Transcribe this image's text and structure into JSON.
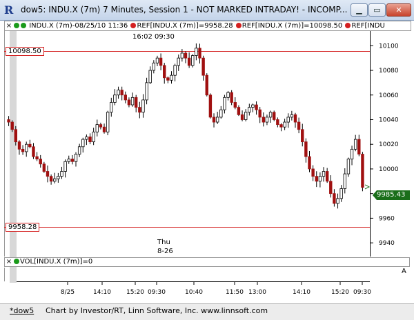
{
  "window": {
    "title": "dow5: INDU.X (7m) 7 Minutes, Session 1 - NOT MARKED INTRADAY! - INCOMP...",
    "app_icon": "R",
    "minimize_label": "▁",
    "maximize_label": "▭",
    "close_label": "✕"
  },
  "legend": {
    "close_label": "×",
    "series_label": "INDU.X (7m)-08/25/10 11:36",
    "ref1_label": "REF[INDU.X (7m)]=9958.28",
    "ref2_label": "REF[INDU.X (7m)]=10098.50",
    "ref3_label": "REF[INDU"
  },
  "chart": {
    "ref_high_label": "10098.50",
    "ref_low_label": "9958.28",
    "last_price": "9985.43",
    "annotation_top": "16:02  09:30",
    "annotation_day": "Thu",
    "annotation_date": "8-26",
    "colors": {
      "up": "#000000",
      "down": "#a01010",
      "ref": "#d42020",
      "last": "#1a6e1a"
    }
  },
  "chart_data": {
    "type": "candlestick",
    "ylim": [
      9930,
      10108
    ],
    "y_ticks": [
      10100,
      10080,
      10060,
      10040,
      10020,
      10000,
      9980,
      9960,
      9940
    ],
    "x_tick_labels": [
      "8/25",
      "14:10",
      "15:20",
      "09:30",
      "10:40",
      "11:50",
      "13:00",
      "14:10",
      "15:20",
      "09:30"
    ],
    "reference_lines": [
      10098.5,
      9958.28
    ],
    "last_value": 9985.43,
    "close": [
      10038,
      10032,
      10022,
      10016,
      10014,
      10020,
      10018,
      10010,
      10008,
      10004,
      9998,
      9994,
      9990,
      9992,
      9994,
      9998,
      10006,
      10008,
      10006,
      10012,
      10018,
      10024,
      10026,
      10022,
      10030,
      10036,
      10034,
      10030,
      10046,
      10054,
      10060,
      10064,
      10060,
      10056,
      10052,
      10058,
      10050,
      10046,
      10056,
      10070,
      10080,
      10086,
      10090,
      10084,
      10074,
      10072,
      10076,
      10084,
      10090,
      10094,
      10090,
      10084,
      10092,
      10098,
      10090,
      10076,
      10060,
      10042,
      10038,
      10042,
      10048,
      10058,
      10062,
      10054,
      10050,
      10044,
      10040,
      10046,
      10050,
      10052,
      10048,
      10042,
      10038,
      10042,
      10046,
      10040,
      10036,
      10034,
      10038,
      10042,
      10044,
      10038,
      10032,
      10022,
      10010,
      10000,
      9994,
      9990,
      9994,
      9998,
      9990,
      9980,
      9972,
      9976,
      9984,
      9996,
      10008,
      10016,
      10024,
      10012,
      9985
    ],
    "volume": "0"
  },
  "volume_pane": {
    "close_label": "×",
    "label": "VOL[INDU.X (7m)]=0"
  },
  "status": {
    "tab_label": "*dow5",
    "credit": "Chart by Investor/RT, Linn Software, Inc. www.linnsoft.com"
  },
  "scroll_arrow": "A"
}
